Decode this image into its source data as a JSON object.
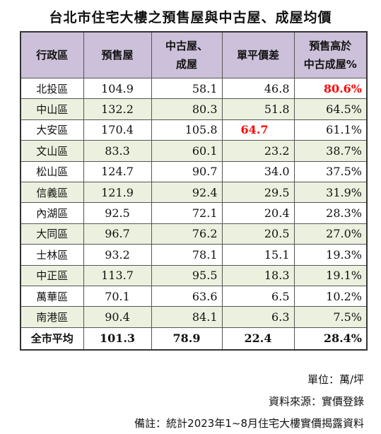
{
  "title": "台北市住宅大樓之預售屋與中古屋、成屋均價",
  "headers": [
    "行政區",
    "預售屋",
    "中古屋、\n成屋",
    "單平價差",
    "預售高於\n中古成屋%"
  ],
  "rows": [
    {
      "district": "北投區",
      "presale": "104.9",
      "used": "58.1",
      "diff": "46.8",
      "pct": "80.6%"
    },
    {
      "district": "中山區",
      "presale": "132.2",
      "used": "80.3",
      "diff": "51.8",
      "pct": "64.5%"
    },
    {
      "district": "大安區",
      "presale": "170.4",
      "used": "105.8",
      "diff": "64.7",
      "pct": "61.1%"
    },
    {
      "district": "文山區",
      "presale": "83.3",
      "used": "60.1",
      "diff": "23.2",
      "pct": "38.7%"
    },
    {
      "district": "松山區",
      "presale": "124.7",
      "used": "90.7",
      "diff": "34.0",
      "pct": "37.5%"
    },
    {
      "district": "信義區",
      "presale": "121.9",
      "used": "92.4",
      "diff": "29.5",
      "pct": "31.9%"
    },
    {
      "district": "內湖區",
      "presale": "92.5",
      "used": "72.1",
      "diff": "20.4",
      "pct": "28.3%"
    },
    {
      "district": "大同區",
      "presale": "96.7",
      "used": "76.2",
      "diff": "20.5",
      "pct": "27.0%"
    },
    {
      "district": "士林區",
      "presale": "93.2",
      "used": "78.1",
      "diff": "15.1",
      "pct": "19.3%"
    },
    {
      "district": "中正區",
      "presale": "113.7",
      "used": "95.5",
      "diff": "18.3",
      "pct": "19.1%"
    },
    {
      "district": "萬華區",
      "presale": "70.1",
      "used": "63.6",
      "diff": "6.5",
      "pct": "10.2%"
    },
    {
      "district": "南港區",
      "presale": "90.4",
      "used": "84.1",
      "diff": "6.3",
      "pct": "7.5%"
    }
  ],
  "total": {
    "district": "全市平均",
    "presale": "101.3",
    "used": "78.9",
    "diff": "22.4",
    "pct": "28.4%"
  },
  "highlight_color": "#ff0000",
  "footer": {
    "unit": "單位：萬/坪",
    "source": "資料來源：實價登錄",
    "note": "備註：統計2023年1~8月住宅大樓實價揭露資料"
  }
}
